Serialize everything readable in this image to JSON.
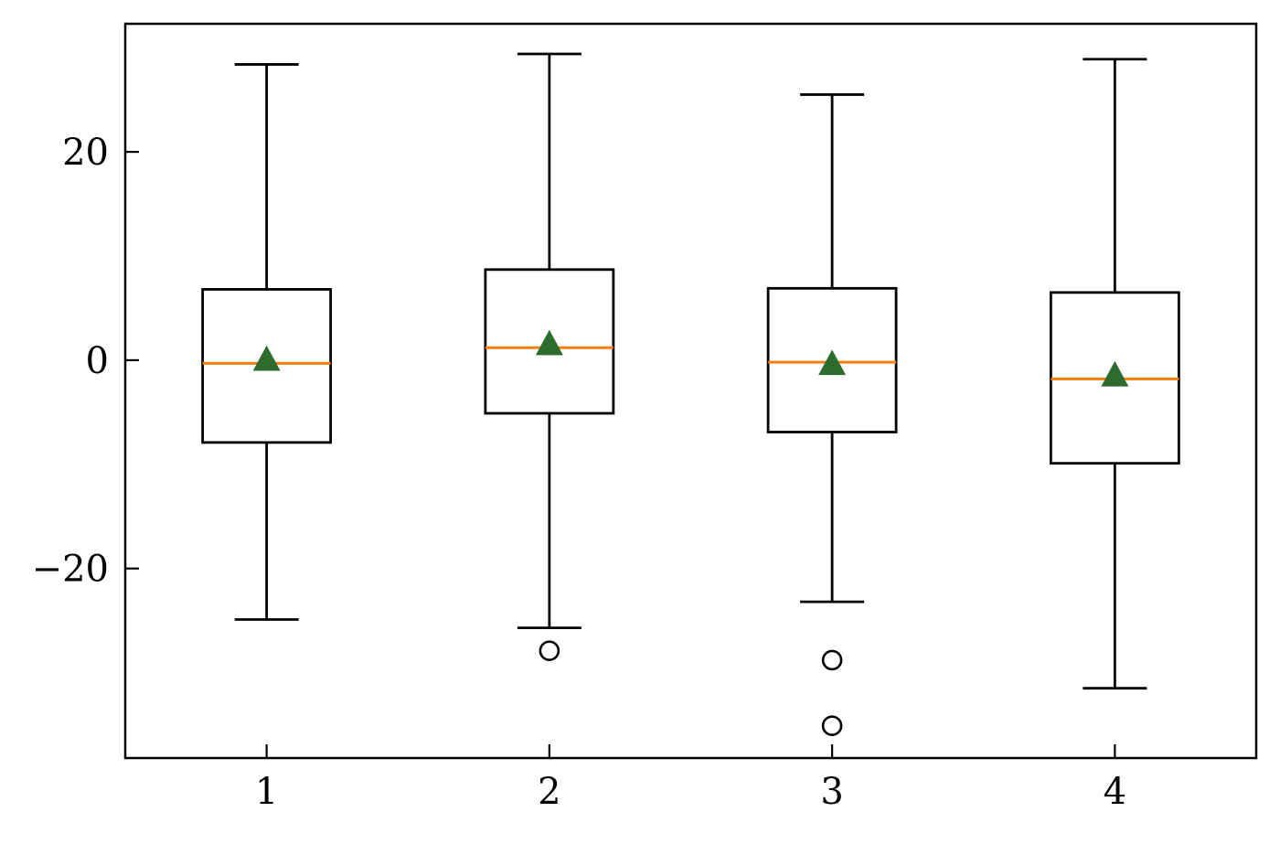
{
  "chart_data": {
    "type": "box",
    "title": "",
    "xlabel": "",
    "ylabel": "",
    "ylim": [
      -38.2,
      32.3
    ],
    "xlim": [
      0.5,
      4.5
    ],
    "yticks": [
      -20,
      0,
      20
    ],
    "ytick_labels": [
      "−20",
      "0",
      "20"
    ],
    "categories": [
      "1",
      "2",
      "3",
      "4"
    ],
    "show_grid": false,
    "show_legend": false,
    "colors": {
      "box": "#000000",
      "median": "#ff7f0e",
      "mean_marker": "#2e6b2e",
      "flier": "#000000",
      "axes": "#000000"
    },
    "boxes": [
      {
        "category": "1",
        "whisker_low": -24.9,
        "q1": -7.9,
        "median": -0.3,
        "q3": 6.8,
        "whisker_high": 28.4,
        "mean": 0.1,
        "fliers": []
      },
      {
        "category": "2",
        "whisker_low": -25.7,
        "q1": -5.1,
        "median": 1.2,
        "q3": 8.7,
        "whisker_high": 29.4,
        "mean": 1.6,
        "fliers": [
          -27.9
        ]
      },
      {
        "category": "3",
        "whisker_low": -23.2,
        "q1": -6.9,
        "median": -0.2,
        "q3": 6.9,
        "whisker_high": 25.5,
        "mean": -0.3,
        "fliers": [
          -28.8,
          -35.1
        ]
      },
      {
        "category": "4",
        "whisker_low": -31.5,
        "q1": -9.9,
        "median": -1.8,
        "q3": 6.5,
        "whisker_high": 28.9,
        "mean": -1.4,
        "fliers": []
      }
    ]
  }
}
